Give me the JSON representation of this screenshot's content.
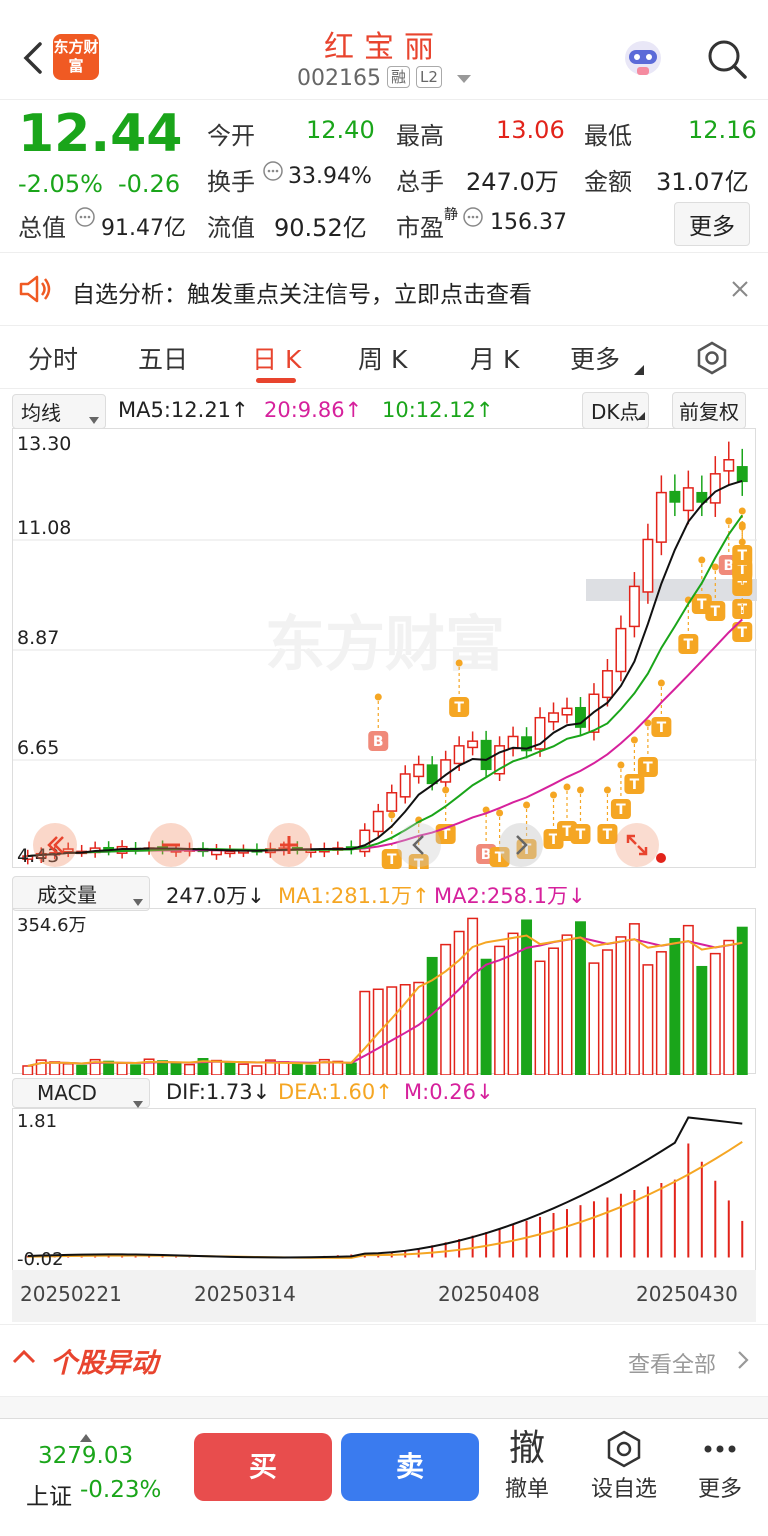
{
  "header": {
    "stock_name": "红宝丽",
    "stock_code": "002165",
    "tag1": "融",
    "tag2": "L2",
    "logo_text": "东方财富"
  },
  "quote": {
    "price": "12.44",
    "change_pct": "-2.05%",
    "change": "-0.26",
    "open_label": "今开",
    "open": "12.40",
    "high_label": "最高",
    "high": "13.06",
    "low_label": "最低",
    "low": "12.16",
    "turnover_label": "换手",
    "turnover": "33.94%",
    "volume_label": "总手",
    "volume": "247.0万",
    "amount_label": "金额",
    "amount": "31.07亿",
    "mktcap_label": "总值",
    "mktcap": "91.47亿",
    "float_label": "流值",
    "float": "90.52亿",
    "pe_label": "市盈",
    "pe_sup": "静",
    "pe": "156.37",
    "more_label": "更多"
  },
  "notice": {
    "text": "自选分析：触发重点关注信号，立即点击查看"
  },
  "tabs": [
    "分时",
    "五日",
    "日 K",
    "周 K",
    "月 K",
    "更多"
  ],
  "active_tab": "日 K",
  "kline": {
    "indicator_select": "均线",
    "ma5": "MA5:12.21↑",
    "ma20": "20:9.86↑",
    "ma10": "10:12.12↑",
    "dk_label": "DK点",
    "adjust_label": "前复权",
    "y_labels": [
      "13.30",
      "11.08",
      "8.87",
      "6.65",
      "4.43"
    ],
    "watermark": "东方财富"
  },
  "volume": {
    "indicator_select": "成交量",
    "value": "247.0万↓",
    "ma1": "MA1:281.1万↑",
    "ma2": "MA2:258.1万↓",
    "y_max": "354.6万"
  },
  "macd": {
    "indicator_select": "MACD",
    "dif": "DIF:1.73↓",
    "dea": "DEA:1.60↑",
    "m": "M:0.26↓",
    "y_max": "1.81",
    "y_min": "-0.02",
    "dates": [
      "20250221",
      "20250314",
      "20250408",
      "20250430"
    ]
  },
  "anomaly": {
    "title": "个股异动",
    "view_all": "查看全部"
  },
  "bottom": {
    "index_value": "3279.03",
    "index_name": "上证",
    "index_change": "-0.23%",
    "buy": "买",
    "sell": "卖",
    "cancel_icon_text": "撤",
    "cancel": "撤单",
    "set_fav": "设自选",
    "more": "更多"
  },
  "colors": {
    "up": "#e2231a",
    "down": "#1aa51a",
    "accent": "#e8442e",
    "buy": "#e84d4d",
    "sell": "#3a7bef"
  }
}
